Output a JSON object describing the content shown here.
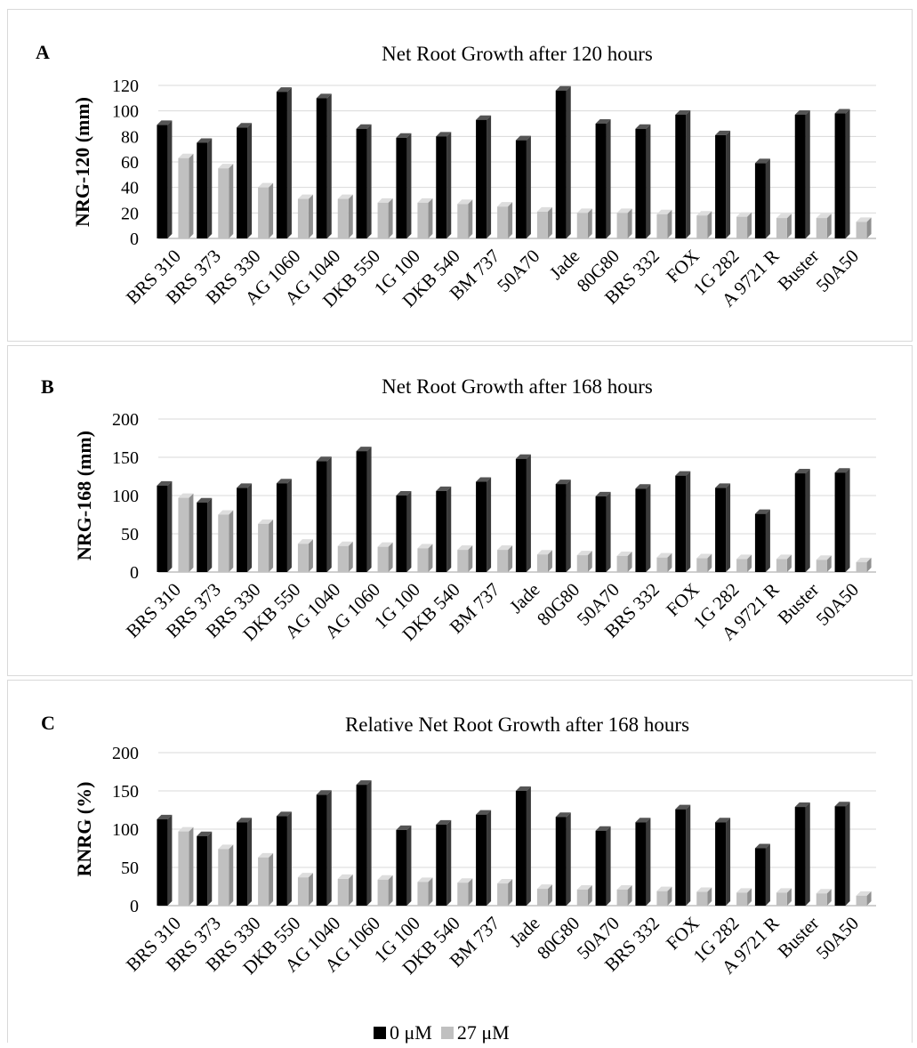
{
  "colors": {
    "series_0": "#000000",
    "series_1": "#c0c0c0",
    "grid": "#d9d9d9"
  },
  "legend": {
    "items": [
      "0 μM",
      "27 μM"
    ]
  },
  "chart_data": [
    {
      "type": "bar",
      "panel_letter": "A",
      "title": "Net Root Growth  after 120 hours",
      "ylabel": "NRG-120 (mm)",
      "xlabel": "",
      "ylim": [
        0,
        120
      ],
      "yticks": [
        0,
        20,
        40,
        60,
        80,
        100,
        120
      ],
      "grid": true,
      "categories": [
        "BRS 310",
        "BRS 373",
        "BRS 330",
        "AG 1060",
        "AG 1040",
        "DKB 550",
        "1G 100",
        "DKB 540",
        "BM 737",
        "50A70",
        "Jade",
        "80G80",
        "BRS 332",
        "FOX",
        "1G 282",
        "A 9721 R",
        "Buster",
        "50A50"
      ],
      "series": [
        {
          "name": "0 μM",
          "values": [
            89,
            75,
            87,
            115,
            110,
            86,
            79,
            80,
            93,
            77,
            116,
            90,
            86,
            97,
            81,
            59,
            97,
            98
          ]
        },
        {
          "name": "27 μM",
          "values": [
            63,
            55,
            40,
            31,
            31,
            28,
            28,
            27,
            25,
            21,
            20,
            20,
            19,
            18,
            17,
            16,
            16,
            13
          ]
        }
      ]
    },
    {
      "type": "bar",
      "panel_letter": "B",
      "title": "Net Root Growth  after 168 hours",
      "ylabel": "NRG-168 (mm)",
      "xlabel": "",
      "ylim": [
        0,
        200
      ],
      "yticks": [
        0,
        50,
        100,
        150,
        200
      ],
      "grid": true,
      "categories": [
        "BRS 310",
        "BRS 373",
        "BRS 330",
        "DKB 550",
        "AG 1040",
        "AG 1060",
        "1G 100",
        "DKB 540",
        "BM 737",
        "Jade",
        "80G80",
        "50A70",
        "BRS 332",
        "FOX",
        "1G 282",
        "A 9721 R",
        "Buster",
        "50A50"
      ],
      "series": [
        {
          "name": "0 μM",
          "values": [
            113,
            91,
            110,
            116,
            145,
            158,
            100,
            106,
            118,
            148,
            115,
            99,
            109,
            126,
            110,
            76,
            129,
            130
          ]
        },
        {
          "name": "27 μM",
          "values": [
            97,
            75,
            63,
            37,
            34,
            33,
            31,
            29,
            29,
            23,
            22,
            21,
            19,
            18,
            17,
            17,
            16,
            13
          ]
        }
      ]
    },
    {
      "type": "bar",
      "panel_letter": "C",
      "title": "Relative Net Root Growth after 168 hours",
      "ylabel": "RNRG (%)",
      "xlabel": "",
      "ylim": [
        0,
        200
      ],
      "yticks": [
        0,
        50,
        100,
        150,
        200
      ],
      "grid": true,
      "categories": [
        "BRS 310",
        "BRS 373",
        "BRS 330",
        "DKB 550",
        "AG 1040",
        "AG 1060",
        "1G 100",
        "DKB 540",
        "BM 737",
        "Jade",
        "80G80",
        "50A70",
        "BRS 332",
        "FOX",
        "1G 282",
        "A 9721 R",
        "Buster",
        "50A50"
      ],
      "series": [
        {
          "name": "0 μM",
          "values": [
            113,
            91,
            109,
            117,
            145,
            158,
            99,
            106,
            119,
            150,
            116,
            98,
            109,
            126,
            109,
            75,
            129,
            130
          ]
        },
        {
          "name": "27 μM",
          "values": [
            97,
            74,
            63,
            37,
            35,
            34,
            31,
            30,
            29,
            22,
            21,
            21,
            19,
            18,
            17,
            17,
            16,
            13
          ]
        }
      ]
    }
  ]
}
